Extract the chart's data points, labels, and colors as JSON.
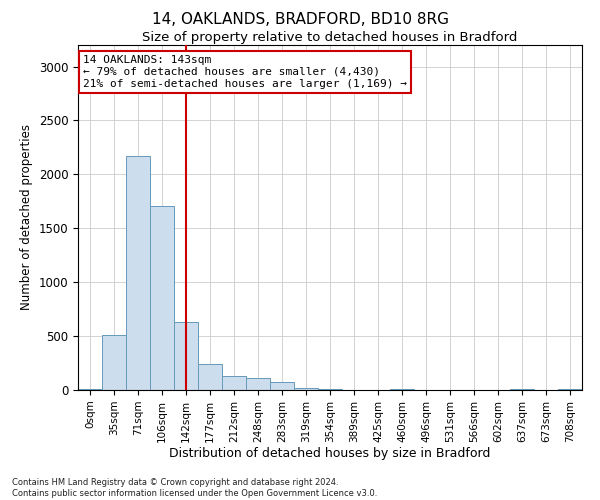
{
  "title_line1": "14, OAKLANDS, BRADFORD, BD10 8RG",
  "title_line2": "Size of property relative to detached houses in Bradford",
  "xlabel": "Distribution of detached houses by size in Bradford",
  "ylabel": "Number of detached properties",
  "footnote": "Contains HM Land Registry data © Crown copyright and database right 2024.\nContains public sector information licensed under the Open Government Licence v3.0.",
  "bar_color": "#ccdded",
  "bar_edge_color": "#6699bb",
  "bin_labels": [
    "0sqm",
    "35sqm",
    "71sqm",
    "106sqm",
    "142sqm",
    "177sqm",
    "212sqm",
    "248sqm",
    "283sqm",
    "319sqm",
    "354sqm",
    "389sqm",
    "425sqm",
    "460sqm",
    "496sqm",
    "531sqm",
    "566sqm",
    "602sqm",
    "637sqm",
    "673sqm",
    "708sqm"
  ],
  "bar_heights": [
    5,
    510,
    2170,
    1710,
    630,
    245,
    130,
    110,
    70,
    15,
    5,
    0,
    0,
    5,
    0,
    0,
    0,
    0,
    5,
    0,
    5
  ],
  "ylim": [
    0,
    3200
  ],
  "yticks": [
    0,
    500,
    1000,
    1500,
    2000,
    2500,
    3000
  ],
  "vline_x": 4.0,
  "annotation_text": "14 OAKLANDS: 143sqm\n← 79% of detached houses are smaller (4,430)\n21% of semi-detached houses are larger (1,169) →",
  "annotation_box_color": "#ffffff",
  "annotation_edge_color": "#cc0000",
  "vline_color": "#cc0000",
  "grid_color": "#cccccc",
  "background_color": "#ffffff"
}
